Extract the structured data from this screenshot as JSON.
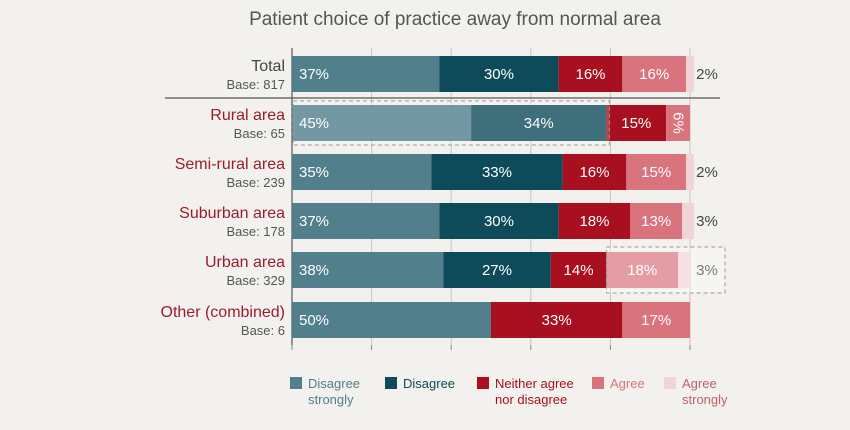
{
  "chart_data": {
    "type": "bar",
    "orientation": "horizontal",
    "stacked": true,
    "title": "Patient choice of practice away from normal area",
    "categories": [
      {
        "label": "Total",
        "base": "Base: 817",
        "highlight": false
      },
      {
        "label": "Rural area",
        "base": "Base: 65",
        "highlight": true
      },
      {
        "label": "Semi-rural area",
        "base": "Base: 239",
        "highlight": false
      },
      {
        "label": "Suburban area",
        "base": "Base: 178",
        "highlight": false
      },
      {
        "label": "Urban area",
        "base": "Base: 329",
        "highlight": true
      },
      {
        "label": "Other (combined)",
        "base": "Base: 6",
        "highlight": false
      }
    ],
    "series": [
      {
        "name": "Disagree strongly",
        "color": "#517f8c",
        "label_color": "#ffffff",
        "values": [
          37,
          45,
          35,
          37,
          38,
          50
        ]
      },
      {
        "name": "Disagree",
        "color": "#0e4b5a",
        "label_color": "#ffffff",
        "values": [
          30,
          34,
          33,
          30,
          27,
          0
        ]
      },
      {
        "name": "Neither agree nor disagree",
        "color": "#a8101f",
        "label_color": "#ffffff",
        "values": [
          16,
          15,
          16,
          18,
          14,
          33
        ]
      },
      {
        "name": "Agree",
        "color": "#d9737e",
        "label_color": "#ffffff",
        "values": [
          16,
          6,
          15,
          13,
          18,
          17
        ]
      },
      {
        "name": "Agree strongly",
        "color": "#f1d4d6",
        "label_color": "#444444",
        "values": [
          2,
          0,
          2,
          3,
          3,
          0
        ]
      }
    ],
    "xlim": [
      0,
      100
    ],
    "gridlines": [
      0,
      20,
      40,
      60,
      80,
      100
    ],
    "legend_position": "bottom"
  }
}
